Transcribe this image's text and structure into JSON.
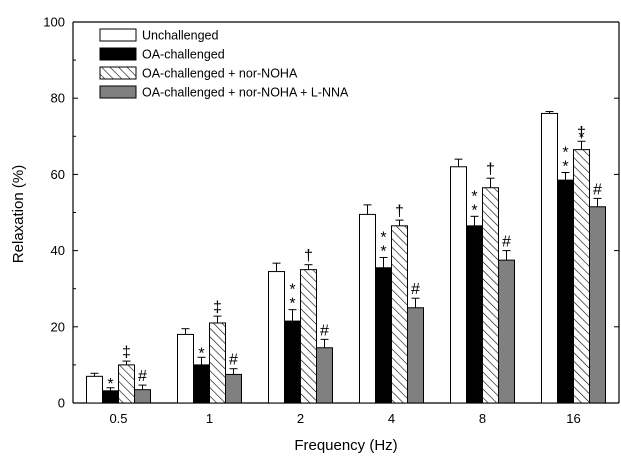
{
  "chart_data": {
    "type": "bar",
    "xlabel": "Frequency (Hz)",
    "ylabel": "Relaxation (%)",
    "ylim": [
      0,
      100
    ],
    "yticks": [
      0,
      20,
      40,
      60,
      80,
      100
    ],
    "grid": false,
    "legend_position": "top-left",
    "categories": [
      "0.5",
      "1",
      "2",
      "4",
      "8",
      "16"
    ],
    "series": [
      {
        "name": "Unchallenged",
        "fill": "#ffffff",
        "pattern": "none",
        "values": [
          7,
          18,
          34.5,
          49.5,
          62,
          76
        ],
        "errors": [
          0.8,
          1.5,
          2.2,
          2.5,
          2,
          0.5
        ],
        "markers": [
          "",
          "",
          "",
          "",
          "",
          ""
        ]
      },
      {
        "name": "OA-challenged",
        "fill": "#000000",
        "pattern": "none",
        "values": [
          3.2,
          10,
          21.5,
          35.5,
          46.5,
          58.5
        ],
        "errors": [
          0.8,
          2,
          3,
          2.7,
          2.5,
          2
        ],
        "markers": [
          "*",
          "*",
          "**",
          "**",
          "**",
          "**"
        ]
      },
      {
        "name": "OA-challenged + nor-NOHA",
        "fill": "#ffffff",
        "pattern": "diagonal",
        "values": [
          10,
          21,
          35,
          46.5,
          56.5,
          66.5
        ],
        "errors": [
          1,
          1.8,
          1.3,
          1.5,
          2.5,
          2.2
        ],
        "markers": [
          "‡",
          "‡",
          "†",
          "†",
          "†",
          "†"
        ]
      },
      {
        "name": "OA-challenged + nor-NOHA + L-NNA",
        "fill": "#808080",
        "pattern": "none",
        "values": [
          3.5,
          7.5,
          14.5,
          25,
          37.5,
          51.5
        ],
        "errors": [
          1.2,
          1.5,
          2.2,
          2.5,
          2.5,
          2.2
        ],
        "markers": [
          "#",
          "#",
          "#",
          "#",
          "#",
          "#"
        ]
      }
    ]
  }
}
